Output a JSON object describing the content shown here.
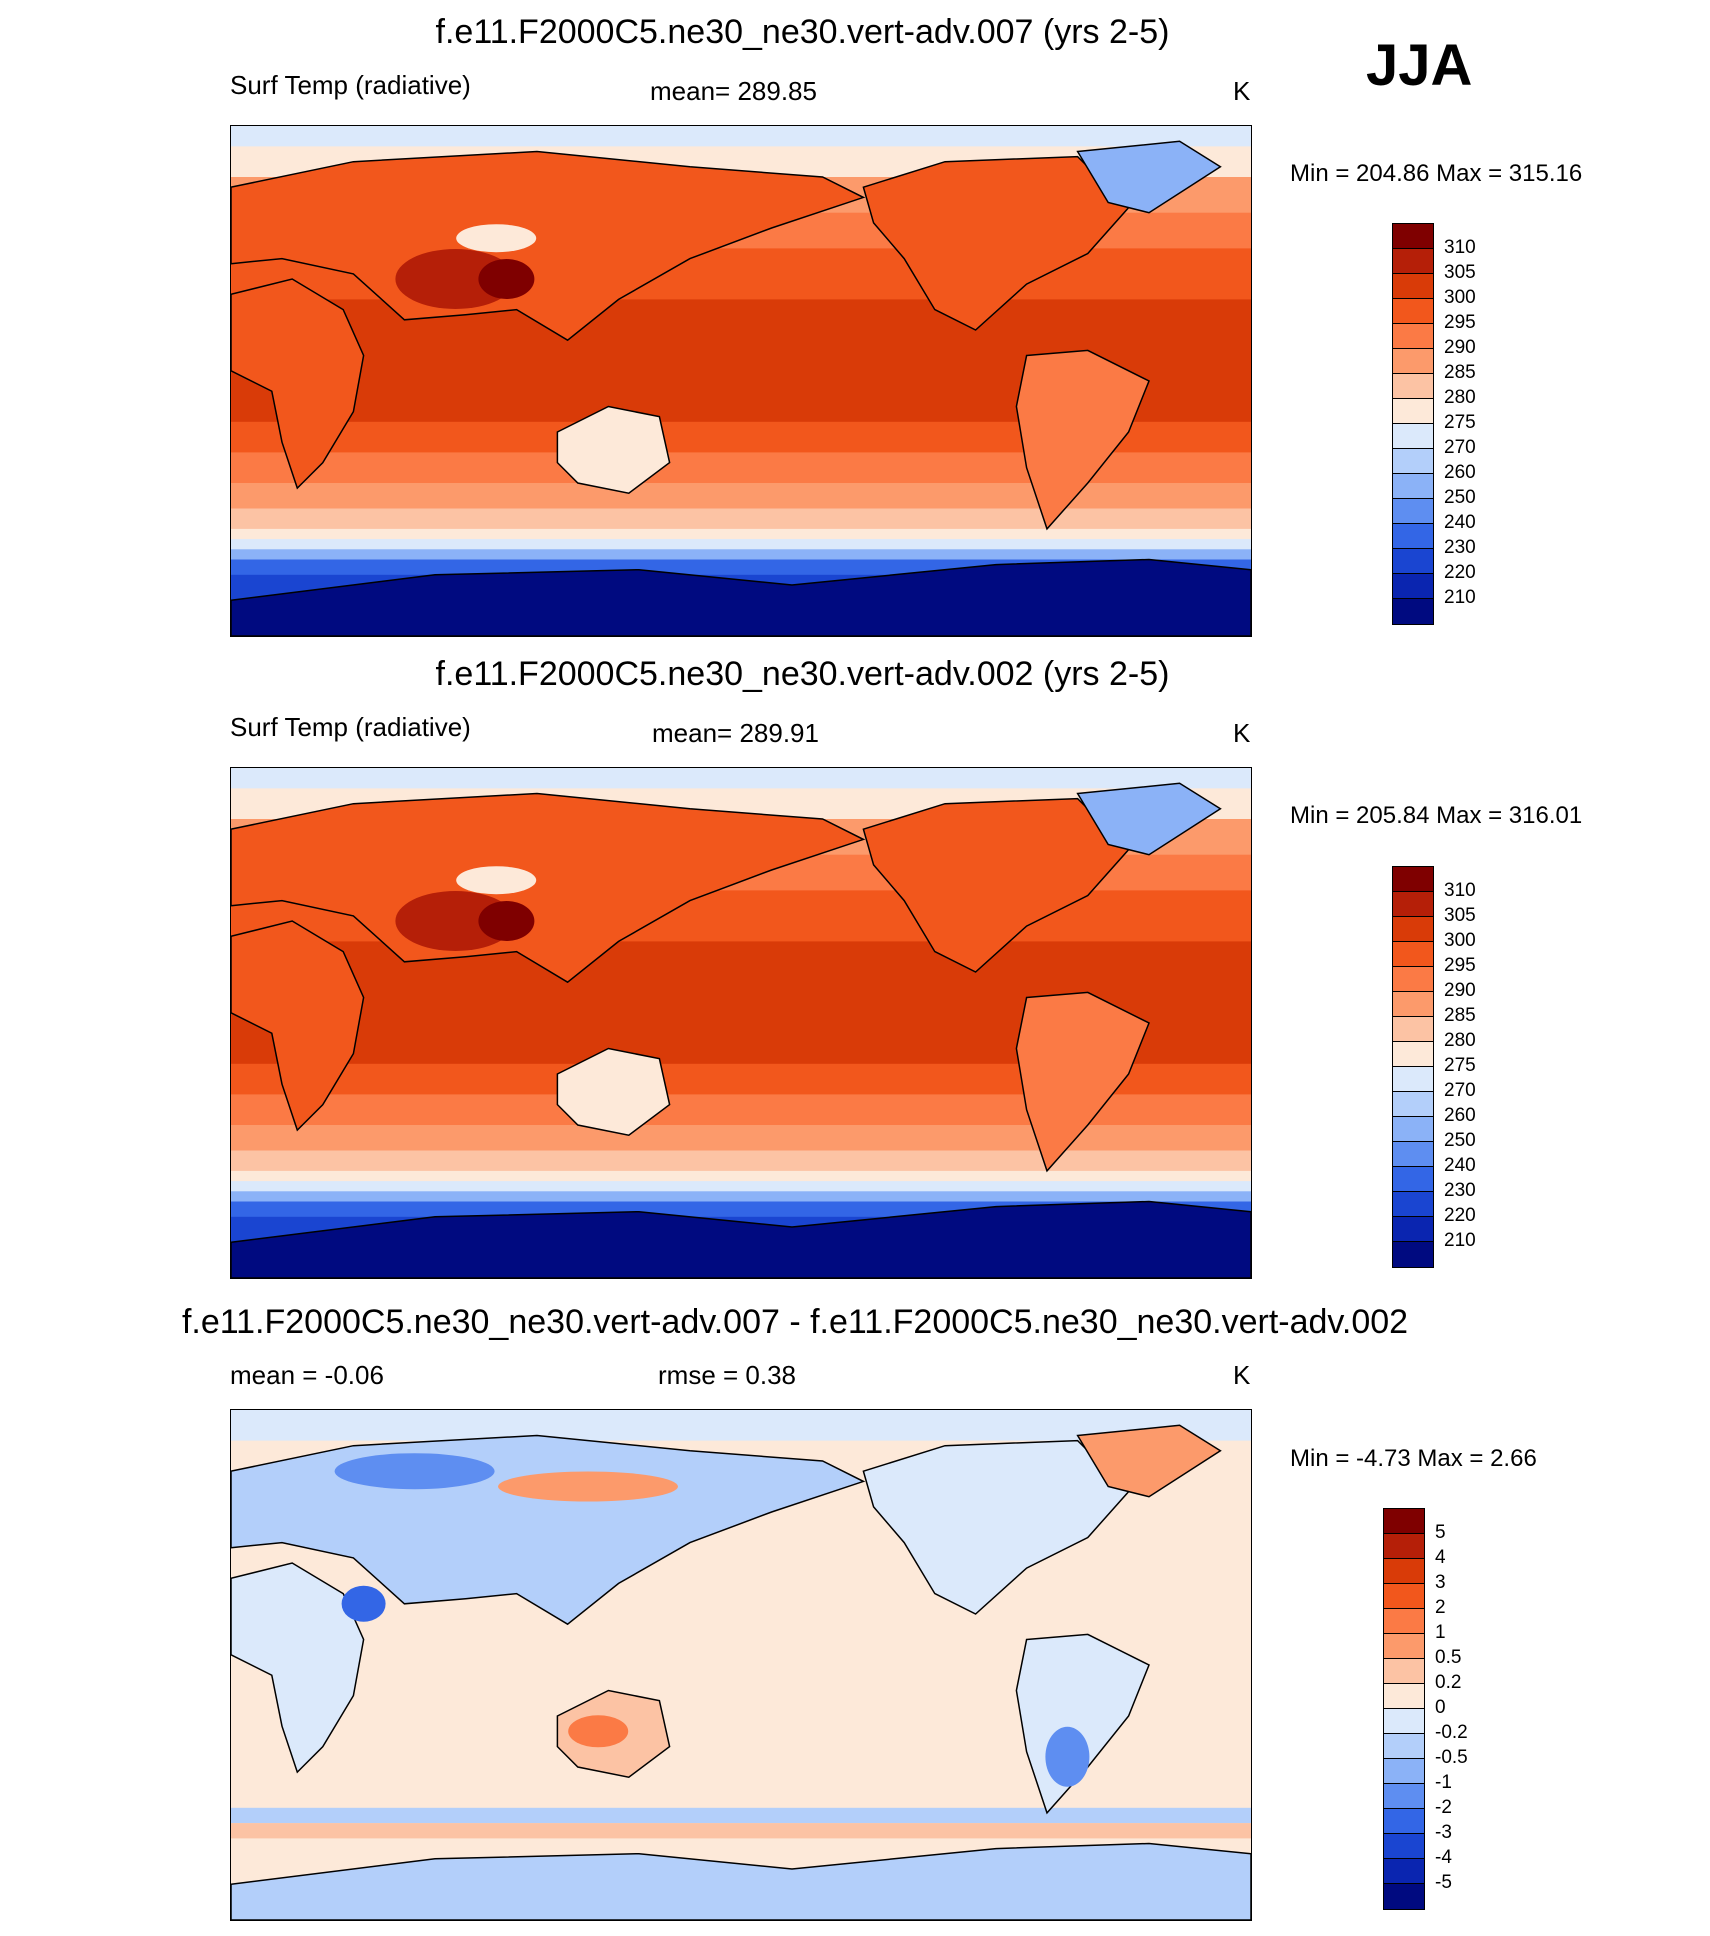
{
  "season": "JJA",
  "panels": [
    {
      "title": "f.e11.F2000C5.ne30_ne30.vert-adv.007 (yrs 2-5)",
      "left_label": "Surf Temp (radiative)",
      "center_label": "mean= 289.85",
      "units": "K",
      "minmax": "Min = 204.86 Max = 315.16",
      "colorbar": {
        "levels": [
          "310",
          "305",
          "300",
          "295",
          "290",
          "285",
          "280",
          "275",
          "270",
          "260",
          "250",
          "240",
          "230",
          "220",
          "210"
        ],
        "colors": [
          "#7f0000",
          "#b51f08",
          "#d93b08",
          "#f2571c",
          "#fb7a45",
          "#fc9a6b",
          "#fcc3a4",
          "#fde9d9",
          "#dbe9fb",
          "#b3cffa",
          "#8bb2f7",
          "#5e8ef1",
          "#3366e6",
          "#1a45d1",
          "#0a25b0",
          "#000a80"
        ]
      },
      "map_kind": "temp"
    },
    {
      "title": "f.e11.F2000C5.ne30_ne30.vert-adv.002 (yrs 2-5)",
      "left_label": "Surf Temp (radiative)",
      "center_label": "mean= 289.91",
      "units": "K",
      "minmax": "Min = 205.84 Max = 316.01",
      "colorbar": {
        "levels": [
          "310",
          "305",
          "300",
          "295",
          "290",
          "285",
          "280",
          "275",
          "270",
          "260",
          "250",
          "240",
          "230",
          "220",
          "210"
        ],
        "colors": [
          "#7f0000",
          "#b51f08",
          "#d93b08",
          "#f2571c",
          "#fb7a45",
          "#fc9a6b",
          "#fcc3a4",
          "#fde9d9",
          "#dbe9fb",
          "#b3cffa",
          "#8bb2f7",
          "#5e8ef1",
          "#3366e6",
          "#1a45d1",
          "#0a25b0",
          "#000a80"
        ]
      },
      "map_kind": "temp"
    },
    {
      "title": "f.e11.F2000C5.ne30_ne30.vert-adv.007 - f.e11.F2000C5.ne30_ne30.vert-adv.002",
      "left_label": "mean =  -0.06",
      "center_label": "rmse =   0.38",
      "units": "K",
      "minmax": "Min =  -4.73 Max =   2.66",
      "colorbar": {
        "levels": [
          "5",
          "4",
          "3",
          "2",
          "1",
          "0.5",
          "0.2",
          "0",
          "-0.2",
          "-0.5",
          "-1",
          "-2",
          "-3",
          "-4",
          "-5"
        ],
        "colors": [
          "#7f0000",
          "#b51f08",
          "#d93b08",
          "#f2571c",
          "#fb7a45",
          "#fc9a6b",
          "#fcc3a4",
          "#fde9d9",
          "#dbe9fb",
          "#b3cffa",
          "#8bb2f7",
          "#5e8ef1",
          "#3366e6",
          "#1a45d1",
          "#0a25b0",
          "#000a80"
        ]
      },
      "map_kind": "diff"
    }
  ]
}
